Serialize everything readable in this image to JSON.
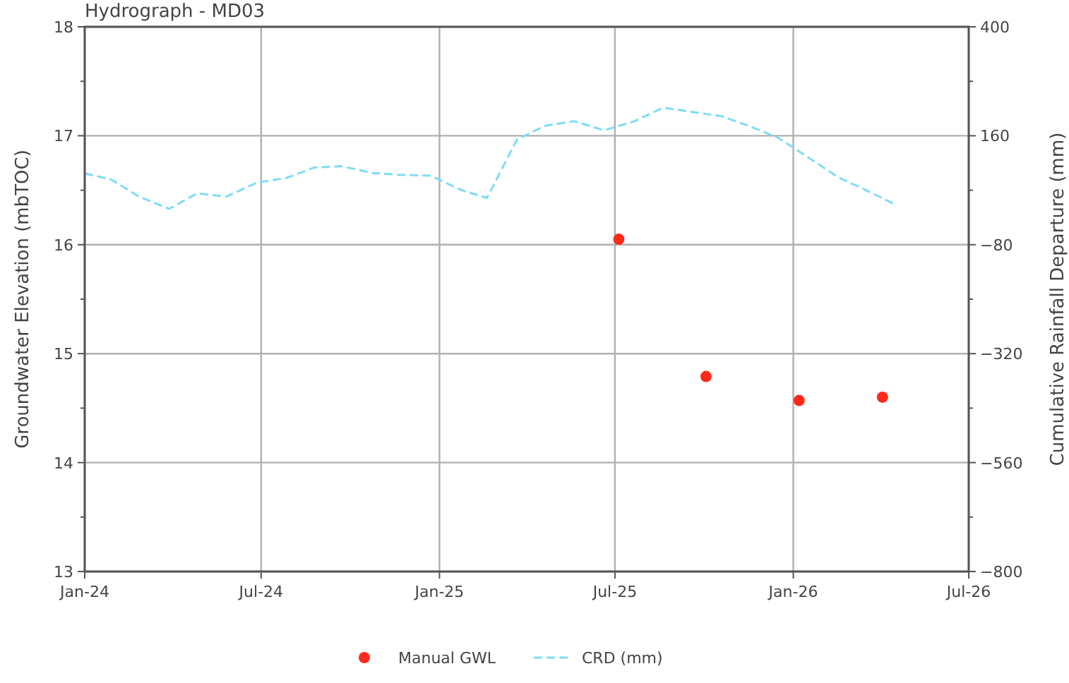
{
  "chart_data": {
    "type": "line",
    "title": "Hydrograph - MD03",
    "ylabel": "Groundwater Elevation (mbTOC)",
    "y2label": "Cumulative Rainfall Departure (mm)",
    "xlim": [
      "2024-01-01",
      "2026-07-01"
    ],
    "xticks": [
      {
        "value": "2024-01-01",
        "label": "Jan-24"
      },
      {
        "value": "2024-07-01",
        "label": "Jul-24"
      },
      {
        "value": "2025-01-01",
        "label": "Jan-25"
      },
      {
        "value": "2025-07-01",
        "label": "Jul-25"
      },
      {
        "value": "2026-01-01",
        "label": "Jan-26"
      },
      {
        "value": "2026-07-01",
        "label": "Jul-26"
      }
    ],
    "ylim": [
      13,
      18
    ],
    "yticks": [
      13,
      {
        "value": 13.5,
        "label": null
      },
      14,
      {
        "value": 14.5,
        "label": null
      },
      15,
      {
        "value": 15.5,
        "label": null
      },
      16,
      {
        "value": 16.5,
        "label": null
      },
      17,
      {
        "value": 17.5,
        "label": null
      },
      18
    ],
    "y2lim": [
      -800,
      400
    ],
    "y2ticks": [
      {
        "value": -800,
        "label": "−800"
      },
      {
        "value": -680,
        "label": null
      },
      {
        "value": -560,
        "label": "−560"
      },
      {
        "value": -440,
        "label": null
      },
      {
        "value": -320,
        "label": "−320"
      },
      {
        "value": -200,
        "label": null
      },
      {
        "value": -80,
        "label": "−80"
      },
      {
        "value": 40,
        "label": null
      },
      160,
      {
        "value": 280,
        "label": null
      },
      400
    ],
    "grid": true,
    "legend": "bottom",
    "series": [
      {
        "name": "Manual GWL",
        "type": "scatter",
        "marker": "circle",
        "color": "#ff2a1a",
        "x": [
          "2025-07-05",
          "2025-10-03",
          "2026-01-07",
          "2026-04-03"
        ],
        "values": [
          16.05,
          14.79,
          14.57,
          14.6
        ]
      },
      {
        "name": "CRD (mm)",
        "axis": "y2",
        "line_style": "dashed",
        "marker": "none",
        "color": "#7fdcf5",
        "x": [
          "2024-01-01",
          "2024-01-28",
          "2024-02-26",
          "2024-03-28",
          "2024-04-26",
          "2024-05-26",
          "2024-06-27",
          "2024-07-27",
          "2024-08-25",
          "2024-09-22",
          "2024-10-24",
          "2024-11-22",
          "2024-12-23",
          "2025-01-24",
          "2025-02-19",
          "2025-03-22",
          "2025-04-20",
          "2025-05-20",
          "2025-06-20",
          "2025-07-21",
          "2025-08-20",
          "2025-09-20",
          "2025-10-19",
          "2025-11-17",
          "2025-12-16",
          "2026-01-16",
          "2026-02-16",
          "2026-03-17",
          "2026-04-15"
        ],
        "values": [
          77,
          64,
          26,
          -1,
          33,
          26,
          57,
          67,
          90,
          93,
          78,
          74,
          72,
          40,
          23,
          152,
          182,
          192,
          172,
          192,
          222,
          212,
          203,
          181,
          156,
          113,
          69,
          40,
          10
        ]
      }
    ]
  }
}
